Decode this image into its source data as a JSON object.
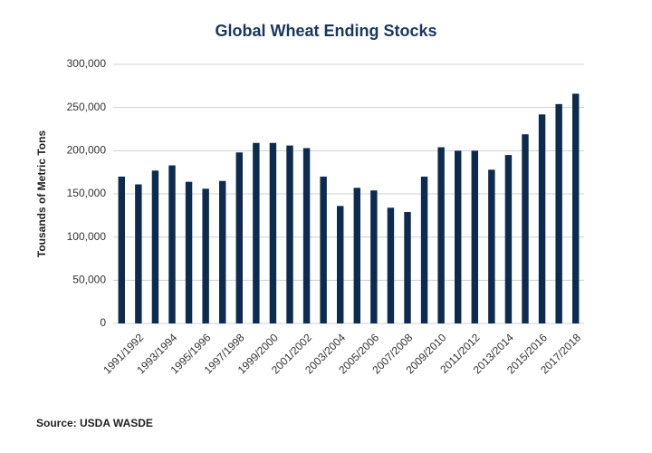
{
  "chart_data": {
    "type": "bar",
    "title": "Global Wheat Ending Stocks",
    "y_label": "Tousands of Metric Tons",
    "source": "Source: USDA WASDE",
    "categories": [
      null,
      "1991/1992",
      null,
      "1993/1994",
      null,
      "1995/1996",
      null,
      "1997/1998",
      null,
      "1999/2000",
      null,
      "2001/2002",
      null,
      "2003/2004",
      null,
      "2005/2006",
      null,
      "2007/2008",
      null,
      "2009/2010",
      null,
      "2011/2012",
      null,
      "2013/2014",
      null,
      "2015/2016",
      null,
      "2017/2018"
    ],
    "values": [
      170000,
      161000,
      177000,
      183000,
      164000,
      156000,
      165000,
      198000,
      209000,
      209000,
      206000,
      203000,
      170000,
      136000,
      157000,
      154000,
      134000,
      129000,
      170000,
      204000,
      200000,
      200000,
      178000,
      195000,
      219000,
      242000,
      254000,
      266000
    ],
    "color": "#0d2b4e",
    "ylim": [
      0,
      300000
    ],
    "yticks": [
      0,
      {
        "value": 50000,
        "label": "50,000"
      },
      {
        "value": 100000,
        "label": "100,000"
      },
      {
        "value": 150000,
        "label": "150,000"
      },
      {
        "value": 200000,
        "label": "200,000"
      },
      {
        "value": 250000,
        "label": "250,000"
      },
      {
        "value": 300000,
        "label": "300,000"
      }
    ],
    "grid": true
  }
}
